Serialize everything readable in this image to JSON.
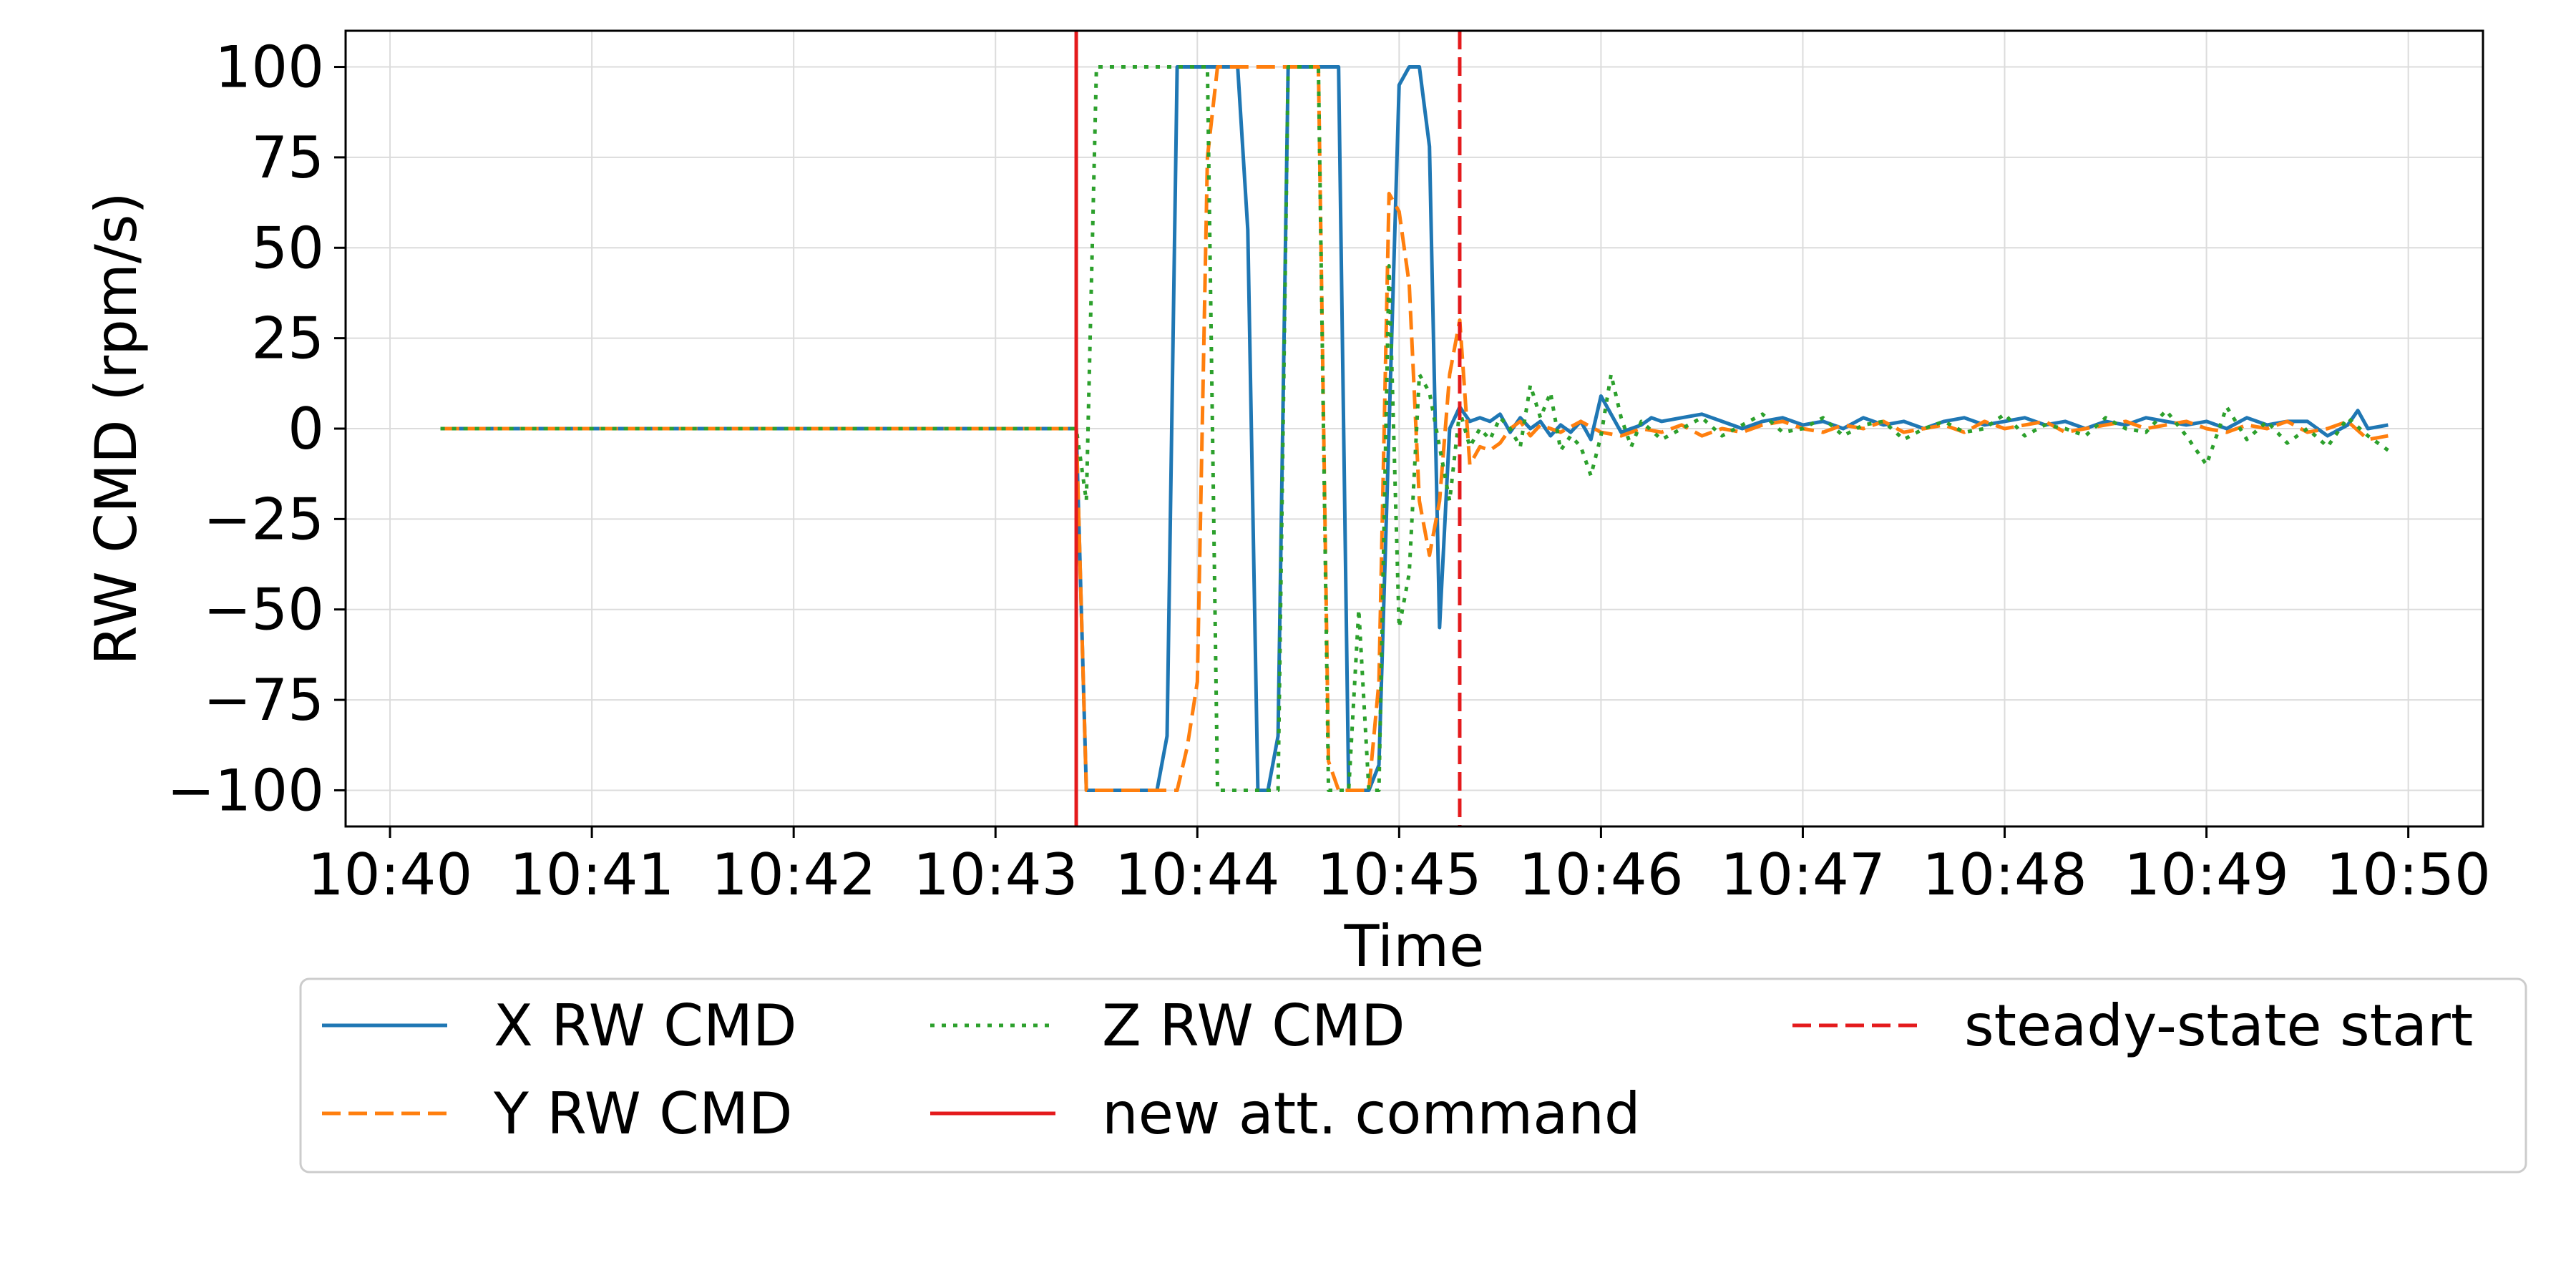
{
  "chart_data": {
    "type": "line",
    "xlabel": "Time",
    "ylabel": "RW CMD (rpm/s)",
    "x_axis": {
      "min_minutes": 39.78,
      "max_minutes": 50.37,
      "ticks": [
        {
          "value": 40,
          "label": "10:40"
        },
        {
          "value": 41,
          "label": "10:41"
        },
        {
          "value": 42,
          "label": "10:42"
        },
        {
          "value": 43,
          "label": "10:43"
        },
        {
          "value": 44,
          "label": "10:44"
        },
        {
          "value": 45,
          "label": "10:45"
        },
        {
          "value": 46,
          "label": "10:46"
        },
        {
          "value": 47,
          "label": "10:47"
        },
        {
          "value": 48,
          "label": "10:48"
        },
        {
          "value": 49,
          "label": "10:49"
        },
        {
          "value": 50,
          "label": "10:50"
        }
      ]
    },
    "y_axis": {
      "ylim": [
        -110,
        110
      ],
      "ticks": [
        {
          "value": 100,
          "label": "100"
        },
        {
          "value": 75,
          "label": "75"
        },
        {
          "value": 50,
          "label": "50"
        },
        {
          "value": 25,
          "label": "25"
        },
        {
          "value": 0,
          "label": "0"
        },
        {
          "value": -25,
          "label": "−25"
        },
        {
          "value": -50,
          "label": "−50"
        },
        {
          "value": -75,
          "label": "−75"
        },
        {
          "value": -100,
          "label": "−100"
        }
      ]
    },
    "grid": true,
    "legend_position": "below",
    "series": [
      {
        "name": "X RW CMD",
        "color": "#1f77b4",
        "style": "solid",
        "x": [
          40.25,
          43.4,
          43.45,
          43.5,
          43.55,
          43.6,
          43.65,
          43.7,
          43.75,
          43.8,
          43.85,
          43.9,
          43.95,
          44.0,
          44.05,
          44.1,
          44.15,
          44.2,
          44.25,
          44.3,
          44.35,
          44.4,
          44.45,
          44.5,
          44.55,
          44.6,
          44.65,
          44.7,
          44.75,
          44.8,
          44.85,
          44.9,
          44.95,
          45.0,
          45.05,
          45.1,
          45.15,
          45.2,
          45.25,
          45.3,
          45.35,
          45.4,
          45.45,
          45.5,
          45.55,
          45.6,
          45.65,
          45.7,
          45.75,
          45.8,
          45.85,
          45.9,
          45.95,
          46.0,
          46.05,
          46.1,
          46.15,
          46.2,
          46.25,
          46.3,
          46.4,
          46.5,
          46.6,
          46.7,
          46.8,
          46.9,
          47.0,
          47.1,
          47.2,
          47.3,
          47.4,
          47.5,
          47.6,
          47.7,
          47.8,
          47.9,
          48.0,
          48.1,
          48.2,
          48.3,
          48.4,
          48.5,
          48.6,
          48.7,
          48.8,
          48.9,
          49.0,
          49.1,
          49.2,
          49.3,
          49.4,
          49.5,
          49.6,
          49.7,
          49.75,
          49.8,
          49.9
        ],
        "y": [
          0,
          0,
          -100,
          -100,
          -100,
          -100,
          -100,
          -100,
          -100,
          -100,
          -85,
          100,
          100,
          100,
          100,
          100,
          100,
          100,
          55,
          -100,
          -100,
          -85,
          100,
          100,
          100,
          100,
          100,
          100,
          -100,
          -100,
          -100,
          -93,
          0,
          95,
          100,
          100,
          78,
          -55,
          0,
          6,
          2,
          3,
          2,
          4,
          -1,
          3,
          0,
          2,
          -2,
          1,
          -1,
          2,
          -3,
          9,
          4,
          -1,
          0,
          1,
          3,
          2,
          3,
          4,
          2,
          0,
          2,
          3,
          1,
          2,
          0,
          3,
          1,
          2,
          0,
          2,
          3,
          1,
          2,
          3,
          1,
          2,
          0,
          2,
          1,
          3,
          2,
          1,
          2,
          0,
          3,
          1,
          2,
          2,
          -2,
          1,
          5,
          0,
          1
        ]
      },
      {
        "name": "Y RW CMD",
        "color": "#ff7f0e",
        "style": "dashed",
        "x": [
          40.25,
          43.4,
          43.45,
          43.5,
          43.55,
          43.6,
          43.65,
          43.7,
          43.75,
          43.8,
          43.85,
          43.9,
          43.95,
          44.0,
          44.05,
          44.1,
          44.15,
          44.2,
          44.25,
          44.3,
          44.35,
          44.4,
          44.45,
          44.5,
          44.55,
          44.6,
          44.65,
          44.7,
          44.75,
          44.8,
          44.85,
          44.9,
          44.95,
          45.0,
          45.05,
          45.1,
          45.15,
          45.2,
          45.25,
          45.3,
          45.35,
          45.4,
          45.45,
          45.5,
          45.55,
          45.6,
          45.65,
          45.7,
          45.8,
          45.9,
          46.0,
          46.1,
          46.2,
          46.3,
          46.4,
          46.5,
          46.6,
          46.7,
          46.8,
          46.9,
          47.0,
          47.1,
          47.2,
          47.3,
          47.4,
          47.5,
          47.6,
          47.7,
          47.8,
          47.9,
          48.0,
          48.1,
          48.2,
          48.3,
          48.4,
          48.5,
          48.6,
          48.7,
          48.8,
          48.9,
          49.0,
          49.1,
          49.2,
          49.3,
          49.4,
          49.5,
          49.6,
          49.7,
          49.8,
          49.9
        ],
        "y": [
          0,
          0,
          -100,
          -100,
          -100,
          -100,
          -100,
          -100,
          -100,
          -100,
          -100,
          -100,
          -88,
          -70,
          75,
          100,
          100,
          100,
          100,
          100,
          100,
          100,
          100,
          100,
          100,
          100,
          -92,
          -100,
          -100,
          -100,
          -100,
          -70,
          65,
          60,
          40,
          -20,
          -35,
          -20,
          15,
          30,
          -10,
          -5,
          -6,
          -4,
          0,
          2,
          -2,
          1,
          -1,
          2,
          -1,
          -2,
          0,
          -1,
          1,
          -2,
          0,
          -1,
          1,
          2,
          0,
          -1,
          1,
          0,
          2,
          -1,
          0,
          1,
          -1,
          2,
          0,
          1,
          2,
          -1,
          0,
          1,
          2,
          0,
          1,
          2,
          0,
          -1,
          1,
          0,
          2,
          -1,
          0,
          2,
          -3,
          -2
        ]
      },
      {
        "name": "Z RW CMD",
        "color": "#2ca02c",
        "style": "dotted",
        "x": [
          40.25,
          43.4,
          43.45,
          43.5,
          43.55,
          44.05,
          44.1,
          44.15,
          44.2,
          44.25,
          44.3,
          44.35,
          44.4,
          44.45,
          44.5,
          44.55,
          44.6,
          44.65,
          44.7,
          44.75,
          44.8,
          44.85,
          44.9,
          44.95,
          45.0,
          45.05,
          45.1,
          45.15,
          45.2,
          45.25,
          45.3,
          45.35,
          45.4,
          45.45,
          45.5,
          45.55,
          45.6,
          45.65,
          45.7,
          45.75,
          45.8,
          45.85,
          45.9,
          45.95,
          46.0,
          46.05,
          46.1,
          46.15,
          46.2,
          46.3,
          46.4,
          46.5,
          46.6,
          46.7,
          46.8,
          46.9,
          47.0,
          47.1,
          47.2,
          47.3,
          47.4,
          47.5,
          47.6,
          47.7,
          47.8,
          47.9,
          48.0,
          48.1,
          48.2,
          48.3,
          48.4,
          48.5,
          48.6,
          48.7,
          48.8,
          48.9,
          49.0,
          49.1,
          49.2,
          49.3,
          49.4,
          49.5,
          49.6,
          49.7,
          49.8,
          49.9
        ],
        "y": [
          0,
          0,
          -20,
          100,
          100,
          100,
          -100,
          -100,
          -100,
          -100,
          -100,
          -100,
          -100,
          100,
          100,
          100,
          100,
          -100,
          -100,
          -100,
          -50,
          -100,
          -100,
          45,
          -55,
          -40,
          15,
          10,
          -5,
          -20,
          5,
          -5,
          0,
          -3,
          3,
          0,
          -5,
          12,
          3,
          10,
          -6,
          -2,
          -5,
          -13,
          -2,
          15,
          3,
          -5,
          2,
          -3,
          0,
          3,
          -2,
          1,
          4,
          -1,
          0,
          3,
          -2,
          1,
          2,
          -3,
          0,
          2,
          -1,
          0,
          4,
          -2,
          1,
          0,
          -2,
          3,
          0,
          -1,
          5,
          -2,
          -10,
          6,
          -3,
          2,
          -4,
          0,
          -5,
          3,
          -2,
          -6
        ]
      }
    ],
    "markers": [
      {
        "name": "new att. command",
        "x": 43.4,
        "color": "#e41a1c",
        "style": "solid"
      },
      {
        "name": "steady-state start",
        "x": 45.3,
        "color": "#e41a1c",
        "style": "dashed"
      }
    ]
  }
}
